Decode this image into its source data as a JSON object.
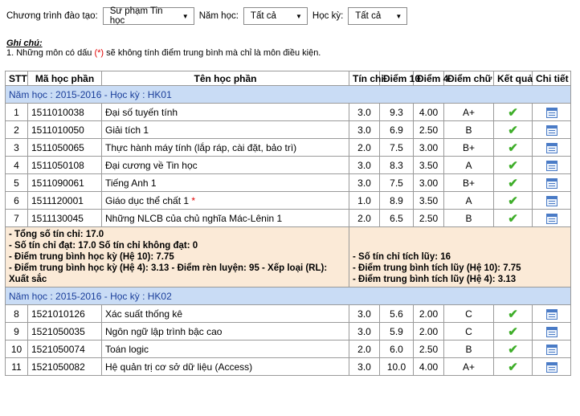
{
  "filters": {
    "program_label": "Chương trình đào tạo:",
    "program_value": "Sư phạm Tin học",
    "year_label": "Năm học:",
    "year_value": "Tất cả",
    "semester_label": "Học kỳ:",
    "semester_value": "Tất cả"
  },
  "note": {
    "title": "Ghi chú:",
    "line_prefix": "1. Những môn có dấu ",
    "line_marker": "(*)",
    "line_suffix": " sẽ không tính điểm trung bình mà chỉ là môn điều kiện."
  },
  "table": {
    "headers": [
      "STT",
      "Mã học phần",
      "Tên học phần",
      "Tín chỉ",
      "Điểm 10",
      "Điểm 4",
      "Điểm chữ",
      "Kết quả",
      "Chi tiết"
    ],
    "semester1": {
      "title": "Năm học : 2015-2016 - Học kỳ : HK01",
      "rows": [
        {
          "stt": "1",
          "code": "1511010038",
          "name": "Đại số tuyến tính",
          "credits": "3.0",
          "score10": "9.3",
          "score4": "4.00",
          "letter": "A+",
          "star": ""
        },
        {
          "stt": "2",
          "code": "1511010050",
          "name": "Giải tích 1",
          "credits": "3.0",
          "score10": "6.9",
          "score4": "2.50",
          "letter": "B",
          "star": ""
        },
        {
          "stt": "3",
          "code": "1511050065",
          "name": "Thực hành máy tính (lắp ráp, cài đặt, bảo trì)",
          "credits": "2.0",
          "score10": "7.5",
          "score4": "3.00",
          "letter": "B+",
          "star": ""
        },
        {
          "stt": "4",
          "code": "1511050108",
          "name": "Đại cương về Tin học",
          "credits": "3.0",
          "score10": "8.3",
          "score4": "3.50",
          "letter": "A",
          "star": ""
        },
        {
          "stt": "5",
          "code": "1511090061",
          "name": "Tiếng Anh 1",
          "credits": "3.0",
          "score10": "7.5",
          "score4": "3.00",
          "letter": "B+",
          "star": ""
        },
        {
          "stt": "6",
          "code": "1511120001",
          "name": "Giáo dục thể chất 1",
          "credits": "1.0",
          "score10": "8.9",
          "score4": "3.50",
          "letter": "A",
          "star": "*"
        },
        {
          "stt": "7",
          "code": "1511130045",
          "name": "Những NLCB của chủ nghĩa Mác-Lênin 1",
          "credits": "2.0",
          "score10": "6.5",
          "score4": "2.50",
          "letter": "B",
          "star": ""
        }
      ],
      "summary_left": [
        "- Tổng số tín chỉ: 17.0",
        "- Số tín chỉ đạt: 17.0 Số tín chỉ không đạt: 0",
        "- Điểm trung bình học kỳ (Hệ 10): 7.75",
        "- Điểm trung bình học kỳ (Hệ 4): 3.13 - Điểm rèn luyện: 95 - Xếp loại (RL): Xuất sắc"
      ],
      "summary_right": [
        "- Số tín chỉ tích lũy: 16",
        "- Điểm trung bình tích lũy (Hệ 10): 7.75",
        "- Điểm trung bình tích lũy (Hệ 4): 3.13"
      ]
    },
    "semester2": {
      "title": "Năm học : 2015-2016 - Học kỳ : HK02",
      "rows": [
        {
          "stt": "8",
          "code": "1521010126",
          "name": "Xác suất thống kê",
          "credits": "3.0",
          "score10": "5.6",
          "score4": "2.00",
          "letter": "C",
          "star": ""
        },
        {
          "stt": "9",
          "code": "1521050035",
          "name": "Ngôn ngữ lập trình bậc cao",
          "credits": "3.0",
          "score10": "5.9",
          "score4": "2.00",
          "letter": "C",
          "star": ""
        },
        {
          "stt": "10",
          "code": "1521050074",
          "name": "Toán logic",
          "credits": "2.0",
          "score10": "6.0",
          "score4": "2.50",
          "letter": "B",
          "star": ""
        },
        {
          "stt": "11",
          "code": "1521050082",
          "name": "Hệ quản trị cơ sở dữ liệu (Access)",
          "credits": "3.0",
          "score10": "10.0",
          "score4": "4.00",
          "letter": "A+",
          "star": ""
        }
      ]
    }
  },
  "icons": {
    "result": "checkmark-icon",
    "detail": "calendar-icon",
    "dropdown": "chevron-down-icon"
  },
  "colors": {
    "semester_bg": "#c9dcf5",
    "summary_bg": "#fbead7",
    "check": "#3fae2a",
    "accent_red": "#e00000"
  }
}
